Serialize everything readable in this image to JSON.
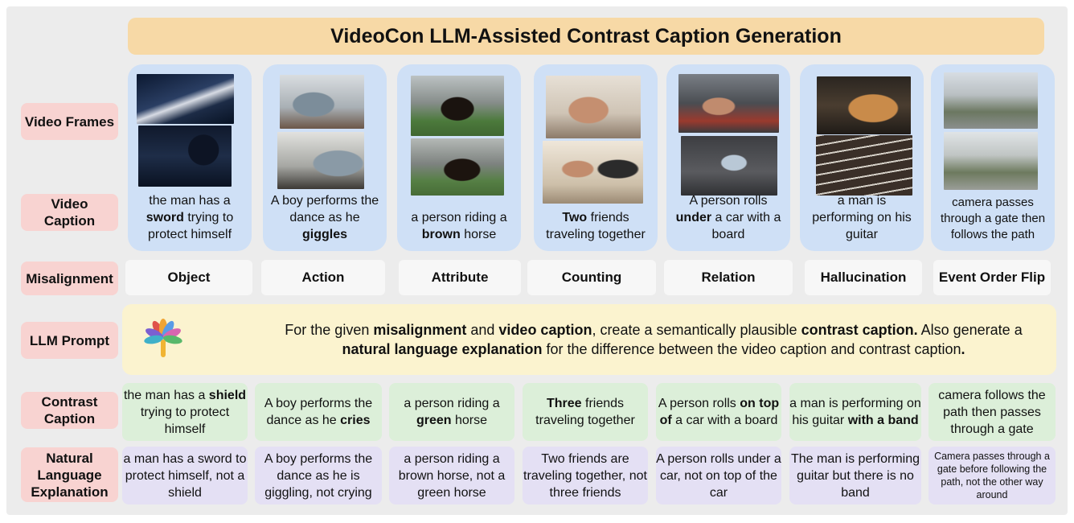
{
  "title": "VideoCon LLM-Assisted Contrast Caption Generation",
  "row_labels": {
    "frames": "Video Frames",
    "caption": "Video Caption",
    "misalignment": "Misalignment",
    "prompt": "LLM Prompt",
    "contrast": "Contrast Caption",
    "explanation": "Natural Language Explanation"
  },
  "columns": [
    {
      "misalignment": "Object",
      "caption": {
        "pre": "the man has a ",
        "bold": "sword",
        "post": " trying to protect himself"
      },
      "contrast": {
        "pre": "the man has a ",
        "bold": "shield",
        "post": " trying to protect himself"
      },
      "explanation": "a man has a sword to protect himself, not a shield"
    },
    {
      "misalignment": "Action",
      "caption": {
        "pre": "A boy performs the dance as he ",
        "bold": "giggles",
        "post": ""
      },
      "contrast": {
        "pre": "A boy performs the dance as he ",
        "bold": "cries",
        "post": ""
      },
      "explanation": "A boy performs the dance as he is giggling, not crying"
    },
    {
      "misalignment": "Attribute",
      "caption": {
        "pre": "a person riding a ",
        "bold": "brown",
        "post": " horse"
      },
      "contrast": {
        "pre": "a person riding a ",
        "bold": "green",
        "post": " horse"
      },
      "explanation": "a person riding a brown horse, not a green horse"
    },
    {
      "misalignment": "Counting",
      "caption": {
        "pre": "",
        "bold": "Two",
        "post": " friends traveling together"
      },
      "contrast": {
        "pre": "",
        "bold": "Three",
        "post": " friends traveling together"
      },
      "explanation": "Two friends are traveling together, not three friends"
    },
    {
      "misalignment": "Relation",
      "caption": {
        "pre": "A person rolls ",
        "bold": "under",
        "post": " a car with a board"
      },
      "contrast": {
        "pre": "A person rolls ",
        "bold": "on top of",
        "post": " a car with a board"
      },
      "explanation": "A person rolls under a car, not on top of the car"
    },
    {
      "misalignment": "Hallucination",
      "caption": {
        "pre": "a man is performing on his guitar",
        "bold": "",
        "post": ""
      },
      "contrast": {
        "pre": "a man is performing on his guitar ",
        "bold": "with a band",
        "post": ""
      },
      "explanation": "The man is performing guitar but there is no band"
    },
    {
      "misalignment": "Event Order Flip",
      "caption": {
        "pre": "camera passes through a gate then follows the path",
        "bold": "",
        "post": ""
      },
      "contrast": {
        "pre": "camera follows the path then passes through a gate",
        "bold": "",
        "post": ""
      },
      "explanation": "Camera passes through a gate before following the path, not the other way around"
    }
  ],
  "prompt": {
    "p1": "For the given ",
    "b1": "misalignment",
    "p2": " and ",
    "b2": "video caption",
    "p3": ", create a semantically plausible ",
    "b3": "contrast caption.",
    "p4": " Also generate a ",
    "b4": "natural language explanation",
    "p5": " for the difference between the video caption and contrast caption",
    "b5": "."
  },
  "colors": {
    "title_bg": "#f7d9a6",
    "label_bg": "#f8d3d1",
    "video_card": "#cfe0f6",
    "contrast_card": "#dcefd9",
    "explanation_card": "#e4e0f4",
    "prompt_bg": "#fbf3cf"
  }
}
